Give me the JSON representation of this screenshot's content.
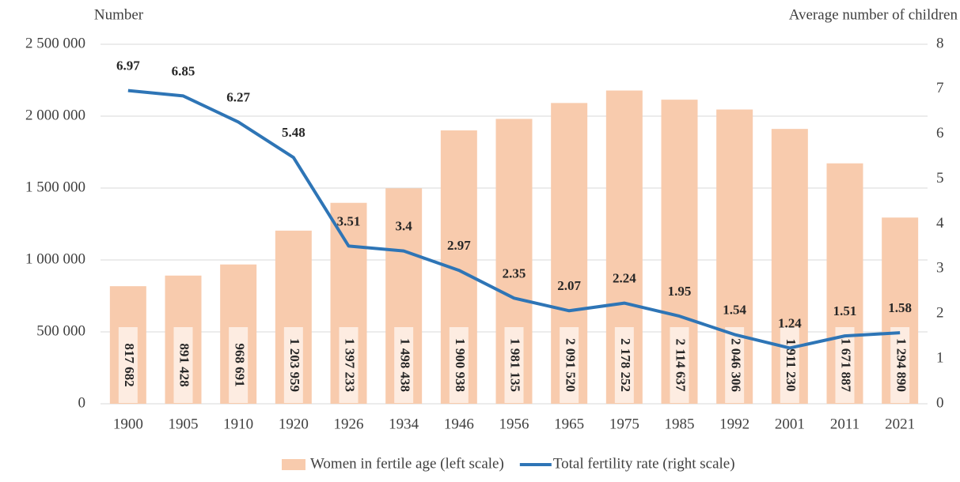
{
  "chart_data": {
    "type": "combo",
    "y_label": "Number",
    "y2_label": "Average number of children",
    "categories": [
      "1900",
      "1905",
      "1910",
      "1920",
      "1926",
      "1934",
      "1946",
      "1956",
      "1965",
      "1975",
      "1985",
      "1992",
      "2001",
      "2011",
      "2021"
    ],
    "series": [
      {
        "name": "Women in fertile age (left scale)",
        "type": "bar",
        "color": "#f8cbad",
        "values": [
          817682,
          891428,
          968691,
          1203959,
          1397233,
          1498438,
          1900938,
          1981135,
          2091520,
          2178252,
          2114637,
          2046306,
          1911230,
          1671887,
          1294890
        ],
        "value_labels": [
          "817 682",
          "891 428",
          "968 691",
          "1 203 959",
          "1 397 233",
          "1 498 438",
          "1 900 938",
          "1 981 135",
          "2 091 520",
          "2 178 252",
          "2 114 637",
          "2 046 306",
          "1 911 230",
          "1 671 887",
          "1 294 890"
        ]
      },
      {
        "name": "Total fertility rate (right scale)",
        "type": "line",
        "axis": "y2",
        "color": "#2e75b6",
        "values": [
          6.97,
          6.85,
          6.27,
          5.48,
          3.51,
          3.4,
          2.97,
          2.35,
          2.07,
          2.24,
          1.95,
          1.54,
          1.24,
          1.51,
          1.58
        ]
      }
    ],
    "ylim": [
      0,
      2500000
    ],
    "yticks": [
      0,
      {
        "value": 500000,
        "label": "500 000"
      },
      {
        "value": 1000000,
        "label": "1 000 000"
      },
      {
        "value": 1500000,
        "label": "1 500 000"
      },
      {
        "value": 2000000,
        "label": "2 000 000"
      },
      {
        "value": 2500000,
        "label": "2 500 000"
      }
    ],
    "y2lim": [
      0,
      8
    ],
    "y2ticks": [
      0,
      1,
      2,
      3,
      4,
      5,
      6,
      7,
      8
    ],
    "grid": true,
    "legend": "bottom"
  }
}
